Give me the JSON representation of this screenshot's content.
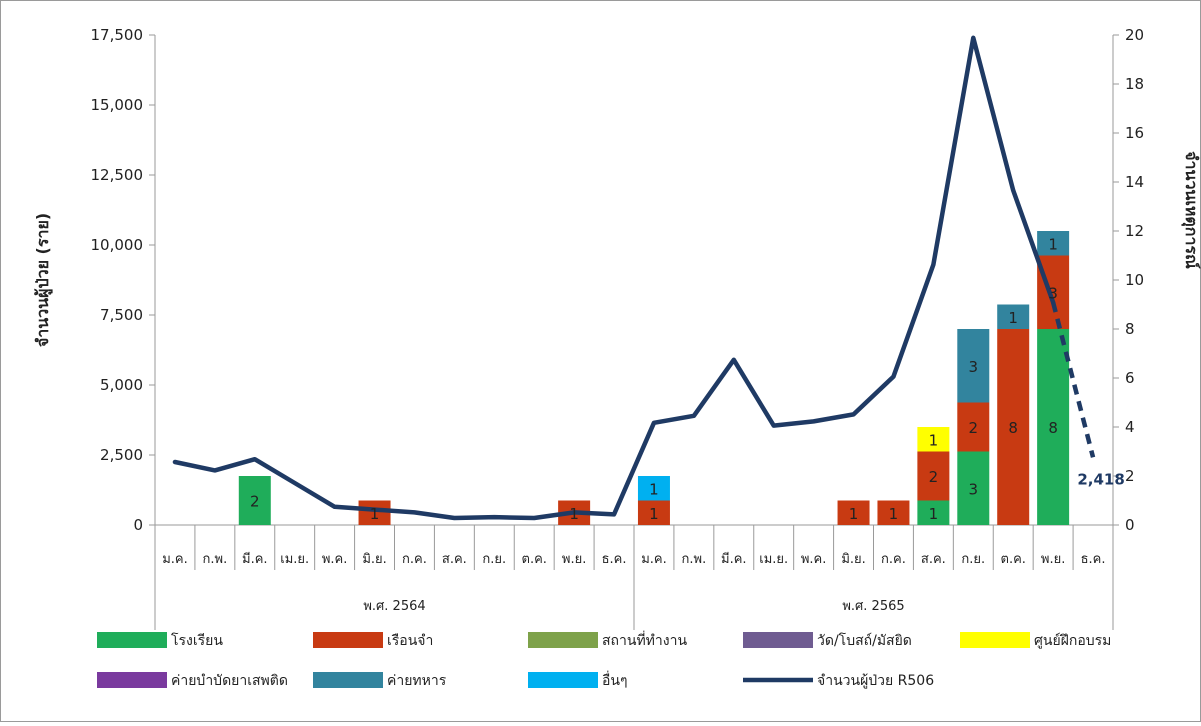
{
  "chart_data": {
    "type": "bar",
    "stacked": true,
    "categories": [
      "ม.ค.",
      "ก.พ.",
      "มี.ค.",
      "เม.ย.",
      "พ.ค.",
      "มิ.ย.",
      "ก.ค.",
      "ส.ค.",
      "ก.ย.",
      "ต.ค.",
      "พ.ย.",
      "ธ.ค.",
      "ม.ค.",
      "ก.พ.",
      "มี.ค.",
      "เม.ย.",
      "พ.ค.",
      "มิ.ย.",
      "ก.ค.",
      "ส.ค.",
      "ก.ย.",
      "ต.ค.",
      "พ.ย.",
      "ธ.ค."
    ],
    "groups": [
      {
        "label": "พ.ศ. 2564",
        "start": 0,
        "end": 11
      },
      {
        "label": "พ.ศ. 2565",
        "start": 12,
        "end": 23
      }
    ],
    "ylabel": "จำนวนผู้ป่วย (ราย)",
    "y2label": "จำนวนเหตุการณ์",
    "ylim": [
      0,
      17500
    ],
    "y2lim": [
      0,
      20
    ],
    "yticks": [
      "0",
      "2,500",
      "5,000",
      "7,500",
      "10,000",
      "12,500",
      "15,000",
      "17,500"
    ],
    "y2ticks": [
      "0",
      "2",
      "4",
      "6",
      "8",
      "10",
      "12",
      "14",
      "16",
      "18",
      "20"
    ],
    "bar_series": [
      {
        "name": "โรงเรียน",
        "color": "#1fad5a",
        "values": [
          0,
          0,
          2,
          0,
          0,
          0,
          0,
          0,
          0,
          0,
          0,
          0,
          0,
          0,
          0,
          0,
          0,
          0,
          0,
          1,
          3,
          0,
          8,
          0
        ]
      },
      {
        "name": "เรือนจำ",
        "color": "#c83a12",
        "values": [
          0,
          0,
          0,
          0,
          0,
          1,
          0,
          0,
          0,
          0,
          1,
          0,
          1,
          0,
          0,
          0,
          0,
          1,
          1,
          2,
          2,
          8,
          3,
          0
        ]
      },
      {
        "name": "สถานที่ทำงาน",
        "color": "#7ea24a",
        "values": [
          0,
          0,
          0,
          0,
          0,
          0,
          0,
          0,
          0,
          0,
          0,
          0,
          0,
          0,
          0,
          0,
          0,
          0,
          0,
          0,
          0,
          0,
          0,
          0
        ]
      },
      {
        "name": "วัด/โบสถ์/มัสยิด",
        "color": "#6f5c91",
        "values": [
          0,
          0,
          0,
          0,
          0,
          0,
          0,
          0,
          0,
          0,
          0,
          0,
          0,
          0,
          0,
          0,
          0,
          0,
          0,
          0,
          0,
          0,
          0,
          0
        ]
      },
      {
        "name": "ศูนย์ฝึกอบรม",
        "color": "#ffff00",
        "values": [
          0,
          0,
          0,
          0,
          0,
          0,
          0,
          0,
          0,
          0,
          0,
          0,
          0,
          0,
          0,
          0,
          0,
          0,
          0,
          1,
          0,
          0,
          0,
          0
        ]
      },
      {
        "name": "ค่ายบำบัดยาเสพติด",
        "color": "#7a3a9e",
        "values": [
          0,
          0,
          0,
          0,
          0,
          0,
          0,
          0,
          0,
          0,
          0,
          0,
          0,
          0,
          0,
          0,
          0,
          0,
          0,
          0,
          0,
          0,
          0,
          0
        ]
      },
      {
        "name": "ค่ายทหาร",
        "color": "#32849e",
        "values": [
          0,
          0,
          0,
          0,
          0,
          0,
          0,
          0,
          0,
          0,
          0,
          0,
          0,
          0,
          0,
          0,
          0,
          0,
          0,
          0,
          3,
          1,
          1,
          0
        ]
      },
      {
        "name": "อื่นๆ",
        "color": "#00b0f0",
        "values": [
          0,
          0,
          0,
          0,
          0,
          0,
          0,
          0,
          0,
          0,
          0,
          0,
          1,
          0,
          0,
          0,
          0,
          0,
          0,
          0,
          0,
          0,
          0,
          0
        ]
      }
    ],
    "line_series": {
      "name": "จำนวนผู้ป่วย R506",
      "color": "#1f3a64",
      "values": [
        2250,
        1950,
        2350,
        1500,
        650,
        550,
        450,
        250,
        280,
        250,
        450,
        380,
        3650,
        3900,
        5900,
        3550,
        3700,
        3950,
        5300,
        9300,
        17400,
        11950,
        7950,
        2418
      ],
      "dashed_from_index": 22,
      "end_label": "2,418"
    },
    "legend": [
      {
        "label": "โรงเรียน",
        "color": "#1fad5a",
        "kind": "bar"
      },
      {
        "label": "เรือนจำ",
        "color": "#c83a12",
        "kind": "bar"
      },
      {
        "label": "สถานที่ทำงาน",
        "color": "#7ea24a",
        "kind": "bar"
      },
      {
        "label": "วัด/โบสถ์/มัสยิด",
        "color": "#6f5c91",
        "kind": "bar"
      },
      {
        "label": "ศูนย์ฝึกอบรม",
        "color": "#ffff00",
        "kind": "bar"
      },
      {
        "label": "ค่ายบำบัดยาเสพติด",
        "color": "#7a3a9e",
        "kind": "bar"
      },
      {
        "label": "ค่ายทหาร",
        "color": "#32849e",
        "kind": "bar"
      },
      {
        "label": "อื่นๆ",
        "color": "#00b0f0",
        "kind": "bar"
      },
      {
        "label": "จำนวนผู้ป่วย R506",
        "color": "#1f3a64",
        "kind": "line"
      }
    ],
    "legend_position": "bottom",
    "grid": false
  }
}
